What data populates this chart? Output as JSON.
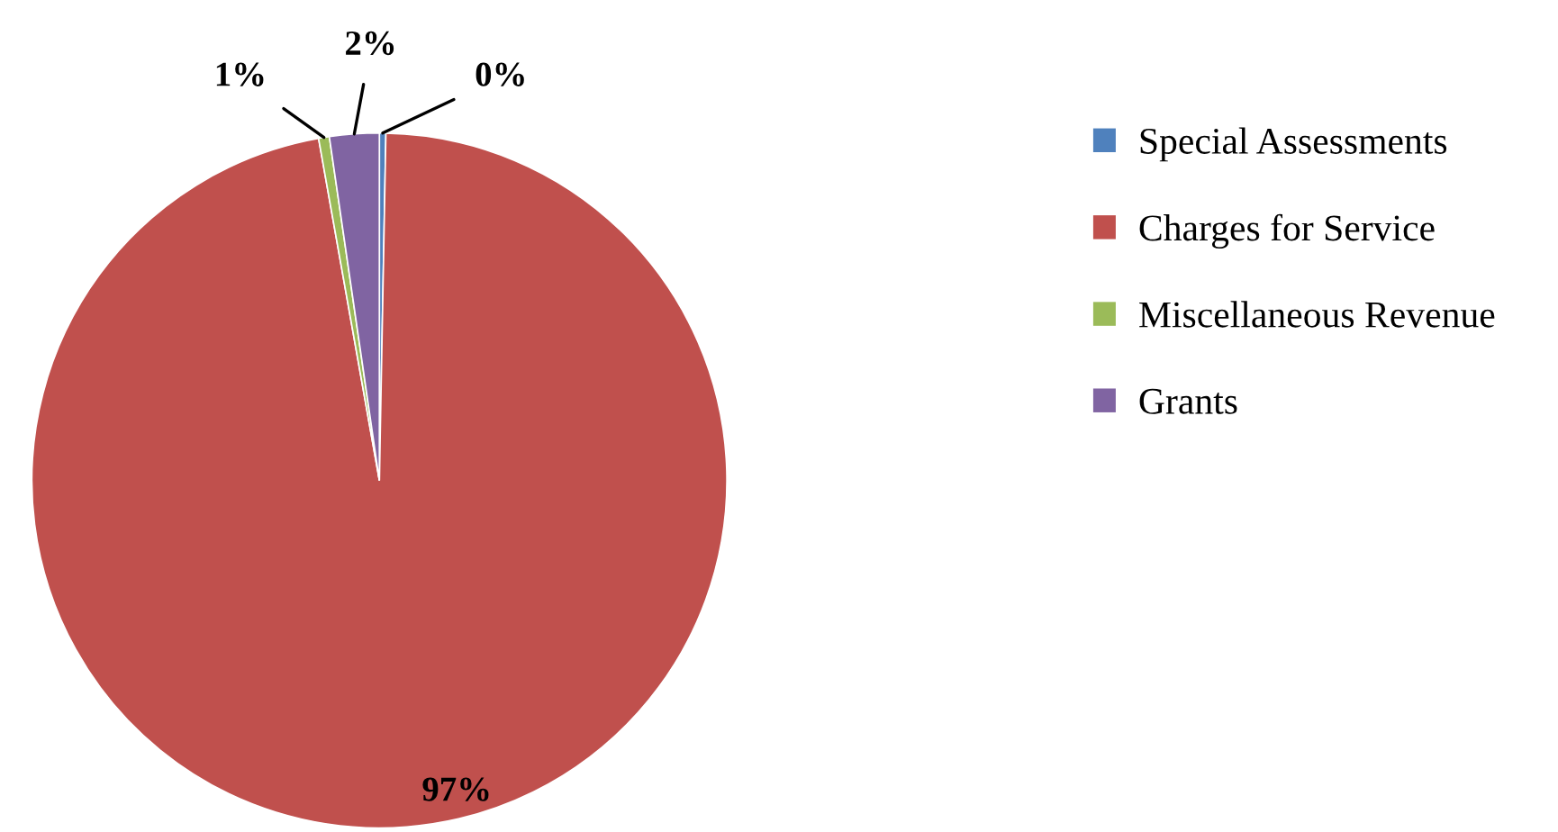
{
  "chart_data": {
    "type": "pie",
    "categories": [
      "Special Assessments",
      "Charges for Service",
      "Miscellaneous Revenue",
      "Grants"
    ],
    "values": [
      0.3,
      96.9,
      0.5,
      2.3
    ],
    "value_labels": [
      "0%",
      "97%",
      "1%",
      "2%"
    ],
    "colors": [
      "#4f81bd",
      "#c0504d",
      "#9bbb59",
      "#8064a2"
    ],
    "legend": "right"
  }
}
